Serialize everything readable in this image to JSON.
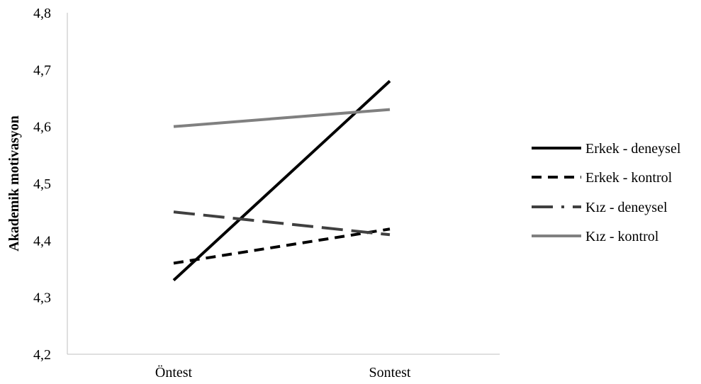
{
  "chart_data": {
    "type": "line",
    "categories": [
      "Öntest",
      "Sontest"
    ],
    "ylabel": "Akademik motivasyon",
    "ylim": [
      4.2,
      4.8
    ],
    "yticks": [
      "4,2",
      "4,3",
      "4,4",
      "4,5",
      "4,6",
      "4,7",
      "4,8"
    ],
    "grid": false,
    "legend_position": "right",
    "series": [
      {
        "name": "Erkek - deneysel",
        "values": [
          4.33,
          4.68
        ],
        "color": "#000000",
        "dash": "solid"
      },
      {
        "name": "Erkek - kontrol",
        "values": [
          4.36,
          4.42
        ],
        "color": "#000000",
        "dash": "short-dash"
      },
      {
        "name": "Kız - deneysel",
        "values": [
          4.45,
          4.41
        ],
        "color": "#404040",
        "dash": "long-dash"
      },
      {
        "name": "Kız - kontrol",
        "values": [
          4.6,
          4.63
        ],
        "color": "#808080",
        "dash": "solid"
      }
    ]
  }
}
